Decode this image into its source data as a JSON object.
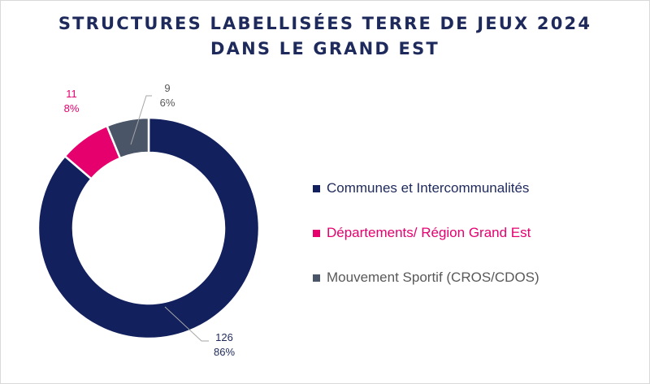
{
  "chart_data": {
    "type": "pie",
    "variant": "donut",
    "title": "STRUCTURES LABELLISÉES TERRE DE JEUX 2024",
    "subtitle": "DANS LE GRAND EST",
    "legend_position": "right",
    "series": [
      {
        "name": "Communes et Intercommunalités",
        "value": 126,
        "percent": "86%",
        "color": "#12205e",
        "count_label": "126"
      },
      {
        "name": "Départements/ Région Grand Est",
        "value": 11,
        "percent": "8%",
        "color": "#e6006e",
        "count_label": "11"
      },
      {
        "name": "Mouvement Sportif (CROS/CDOS)",
        "value": 9,
        "percent": "6%",
        "color": "#4a5568",
        "count_label": "9"
      }
    ],
    "label_colors": [
      "#1f2a5c",
      "#e6006e",
      "#595959"
    ]
  }
}
